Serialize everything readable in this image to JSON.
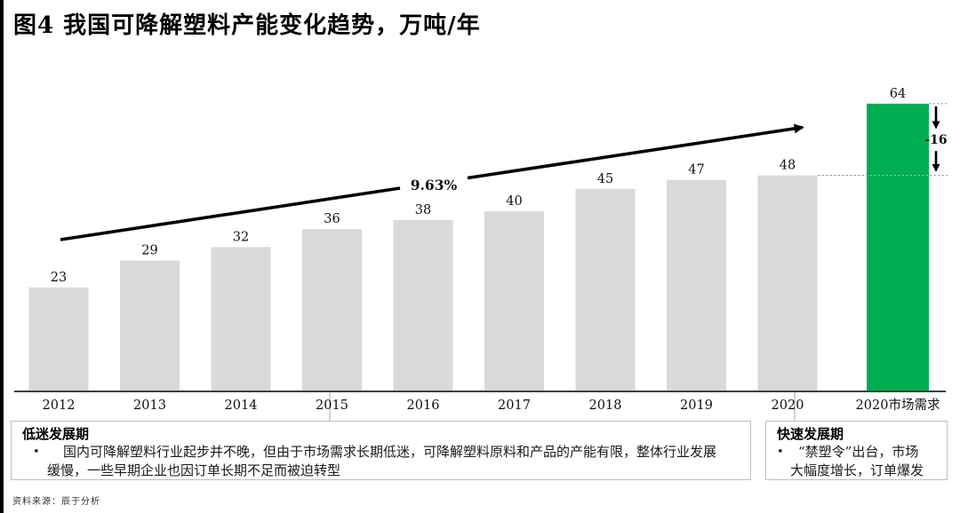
{
  "page": {
    "title": "图4 我国可降解塑料产能变化趋势，万吨/年",
    "source": "资料来源：辰于分析"
  },
  "glyphs": {
    "bullet": "•"
  },
  "chart_data": {
    "type": "bar",
    "title": "我国可降解塑料产能变化趋势",
    "unit": "万吨/年",
    "categories": [
      "2012",
      "2013",
      "2014",
      "2015",
      "2016",
      "2017",
      "2018",
      "2019",
      "2020",
      "2020市场需求"
    ],
    "values": [
      23,
      29,
      32,
      36,
      38,
      40,
      45,
      47,
      48,
      64
    ],
    "highlight_index": 9,
    "colors": {
      "bar": "#D9D9D9",
      "highlight": "#00AE52",
      "axis": "#3d3d3d",
      "dashed": "#a6a6a6",
      "arrow": "#000000"
    },
    "cagr_label": "9.63%",
    "delta_label": "-16",
    "ylim": [
      0,
      70
    ],
    "grid": false,
    "legend": "none"
  },
  "periods": [
    {
      "header": "低迷发展期",
      "bullet": "国内可降解塑料行业起步并不晚，但由于市场需求长期低迷，可降解塑料原料和产品的产能有限，整体行业发展缓慢，一些早期企业也因订单长期不足而被迫转型"
    },
    {
      "header": "快速发展期",
      "bullet": "“禁塑令”出台，市场\n大幅度增长，订单爆发"
    }
  ]
}
